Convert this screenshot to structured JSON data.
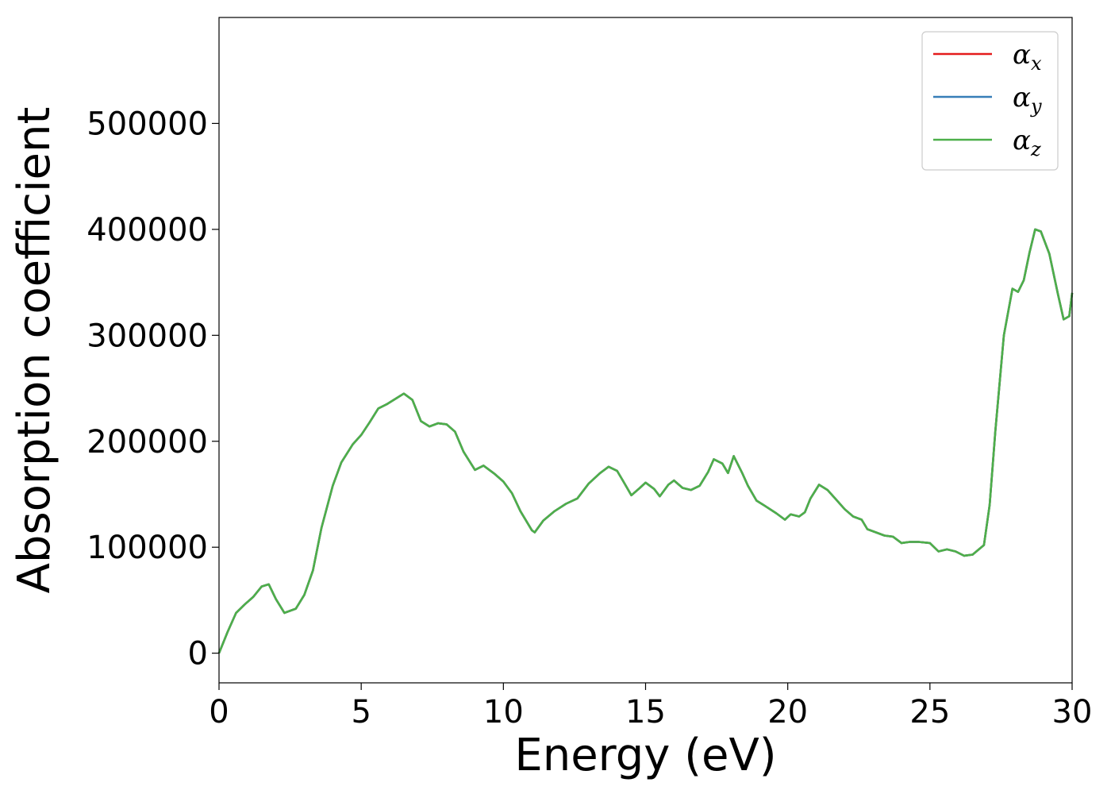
{
  "chart_data": {
    "type": "line",
    "title": "",
    "xlabel": "Energy (eV)",
    "ylabel": "Absorption coefficient",
    "xlim": [
      0,
      30
    ],
    "ylim": [
      -28000,
      600000
    ],
    "xticks": [
      0,
      5,
      10,
      15,
      20,
      25,
      30
    ],
    "yticks": [
      0,
      100000,
      200000,
      300000,
      400000,
      500000
    ],
    "grid": false,
    "legend_position": "top-right",
    "series": [
      {
        "name": "α",
        "sub": "x",
        "color": "#e41a1c",
        "x": [
          0,
          0.3,
          0.6,
          0.9,
          1.2,
          1.5,
          1.75,
          2.0,
          2.3,
          2.7,
          3.0,
          3.3,
          3.6,
          4.0,
          4.3,
          4.7,
          5.0,
          5.3,
          5.6,
          5.9,
          6.2,
          6.5,
          6.8,
          7.1,
          7.4,
          7.7,
          8.0,
          8.3,
          8.6,
          9.0,
          9.3,
          9.7,
          10.0,
          10.3,
          10.6,
          11.0,
          11.1,
          11.4,
          11.8,
          12.2,
          12.6,
          13.0,
          13.4,
          13.7,
          14.0,
          14.2,
          14.5,
          14.8,
          15.0,
          15.3,
          15.5,
          15.8,
          16.0,
          16.3,
          16.6,
          16.9,
          17.2,
          17.4,
          17.7,
          17.9,
          18.1,
          18.4,
          18.6,
          18.9,
          19.2,
          19.6,
          19.9,
          20.1,
          20.4,
          20.6,
          20.8,
          21.1,
          21.4,
          21.7,
          22.0,
          22.3,
          22.6,
          22.8,
          23.1,
          23.4,
          23.7,
          24.0,
          24.3,
          24.6,
          25.0,
          25.3,
          25.6,
          25.9,
          26.2,
          26.5,
          26.9,
          27.1,
          27.3,
          27.6,
          27.9,
          28.1,
          28.3,
          28.5,
          28.7,
          28.9,
          29.2,
          29.5,
          29.7,
          29.9,
          30.0
        ],
        "y": [
          0,
          20000,
          38000,
          46000,
          53000,
          63000,
          65000,
          51000,
          38000,
          42000,
          55000,
          78000,
          118000,
          158000,
          180000,
          197000,
          206000,
          218000,
          231000,
          235000,
          240000,
          245000,
          239000,
          219000,
          214000,
          217000,
          216000,
          209000,
          190000,
          173000,
          177000,
          169000,
          162000,
          151000,
          134000,
          116000,
          114000,
          125000,
          134000,
          141000,
          146000,
          160000,
          170000,
          176000,
          172000,
          163000,
          149000,
          156000,
          161000,
          155000,
          148000,
          159000,
          163000,
          156000,
          154000,
          158000,
          171000,
          183000,
          179000,
          170000,
          186000,
          170000,
          158000,
          144000,
          139000,
          132000,
          126000,
          131000,
          129000,
          133000,
          146000,
          159000,
          154000,
          145000,
          136000,
          129000,
          126000,
          117000,
          114000,
          111000,
          110000,
          104000,
          105000,
          105000,
          104000,
          96000,
          98000,
          96000,
          92000,
          93000,
          102000,
          140000,
          210000,
          300000,
          344000,
          341000,
          352000,
          378000,
          400000,
          398000,
          377000,
          339000,
          315000,
          318000,
          340000
        ]
      },
      {
        "name": "α",
        "sub": "y",
        "color": "#377eb8",
        "x": [
          0,
          0.3,
          0.6,
          0.9,
          1.2,
          1.5,
          1.75,
          2.0,
          2.3,
          2.7,
          3.0,
          3.3,
          3.6,
          4.0,
          4.3,
          4.7,
          5.0,
          5.3,
          5.6,
          5.9,
          6.2,
          6.5,
          6.8,
          7.1,
          7.4,
          7.7,
          8.0,
          8.3,
          8.6,
          9.0,
          9.3,
          9.7,
          10.0,
          10.3,
          10.6,
          11.0,
          11.1,
          11.4,
          11.8,
          12.2,
          12.6,
          13.0,
          13.4,
          13.7,
          14.0,
          14.2,
          14.5,
          14.8,
          15.0,
          15.3,
          15.5,
          15.8,
          16.0,
          16.3,
          16.6,
          16.9,
          17.2,
          17.4,
          17.7,
          17.9,
          18.1,
          18.4,
          18.6,
          18.9,
          19.2,
          19.6,
          19.9,
          20.1,
          20.4,
          20.6,
          20.8,
          21.1,
          21.4,
          21.7,
          22.0,
          22.3,
          22.6,
          22.8,
          23.1,
          23.4,
          23.7,
          24.0,
          24.3,
          24.6,
          25.0,
          25.3,
          25.6,
          25.9,
          26.2,
          26.5,
          26.9,
          27.1,
          27.3,
          27.6,
          27.9,
          28.1,
          28.3,
          28.5,
          28.7,
          28.9,
          29.2,
          29.5,
          29.7,
          29.9,
          30.0
        ],
        "y": [
          0,
          20000,
          38000,
          46000,
          53000,
          63000,
          65000,
          51000,
          38000,
          42000,
          55000,
          78000,
          118000,
          158000,
          180000,
          197000,
          206000,
          218000,
          231000,
          235000,
          240000,
          245000,
          239000,
          219000,
          214000,
          217000,
          216000,
          209000,
          190000,
          173000,
          177000,
          169000,
          162000,
          151000,
          134000,
          116000,
          114000,
          125000,
          134000,
          141000,
          146000,
          160000,
          170000,
          176000,
          172000,
          163000,
          149000,
          156000,
          161000,
          155000,
          148000,
          159000,
          163000,
          156000,
          154000,
          158000,
          171000,
          183000,
          179000,
          170000,
          186000,
          170000,
          158000,
          144000,
          139000,
          132000,
          126000,
          131000,
          129000,
          133000,
          146000,
          159000,
          154000,
          145000,
          136000,
          129000,
          126000,
          117000,
          114000,
          111000,
          110000,
          104000,
          105000,
          105000,
          104000,
          96000,
          98000,
          96000,
          92000,
          93000,
          102000,
          140000,
          210000,
          300000,
          344000,
          341000,
          352000,
          378000,
          400000,
          398000,
          377000,
          339000,
          315000,
          318000,
          340000
        ]
      },
      {
        "name": "α",
        "sub": "z",
        "color": "#4daf4a",
        "x": [
          0,
          0.3,
          0.6,
          0.9,
          1.2,
          1.5,
          1.75,
          2.0,
          2.3,
          2.7,
          3.0,
          3.3,
          3.6,
          4.0,
          4.3,
          4.7,
          5.0,
          5.3,
          5.6,
          5.9,
          6.2,
          6.5,
          6.8,
          7.1,
          7.4,
          7.7,
          8.0,
          8.3,
          8.6,
          9.0,
          9.3,
          9.7,
          10.0,
          10.3,
          10.6,
          11.0,
          11.1,
          11.4,
          11.8,
          12.2,
          12.6,
          13.0,
          13.4,
          13.7,
          14.0,
          14.2,
          14.5,
          14.8,
          15.0,
          15.3,
          15.5,
          15.8,
          16.0,
          16.3,
          16.6,
          16.9,
          17.2,
          17.4,
          17.7,
          17.9,
          18.1,
          18.4,
          18.6,
          18.9,
          19.2,
          19.6,
          19.9,
          20.1,
          20.4,
          20.6,
          20.8,
          21.1,
          21.4,
          21.7,
          22.0,
          22.3,
          22.6,
          22.8,
          23.1,
          23.4,
          23.7,
          24.0,
          24.3,
          24.6,
          25.0,
          25.3,
          25.6,
          25.9,
          26.2,
          26.5,
          26.9,
          27.1,
          27.3,
          27.6,
          27.9,
          28.1,
          28.3,
          28.5,
          28.7,
          28.9,
          29.2,
          29.5,
          29.7,
          29.9,
          30.0
        ],
        "y": [
          0,
          20000,
          38000,
          46000,
          53000,
          63000,
          65000,
          51000,
          38000,
          42000,
          55000,
          78000,
          118000,
          158000,
          180000,
          197000,
          206000,
          218000,
          231000,
          235000,
          240000,
          245000,
          239000,
          219000,
          214000,
          217000,
          216000,
          209000,
          190000,
          173000,
          177000,
          169000,
          162000,
          151000,
          134000,
          116000,
          114000,
          125000,
          134000,
          141000,
          146000,
          160000,
          170000,
          176000,
          172000,
          163000,
          149000,
          156000,
          161000,
          155000,
          148000,
          159000,
          163000,
          156000,
          154000,
          158000,
          171000,
          183000,
          179000,
          170000,
          186000,
          170000,
          158000,
          144000,
          139000,
          132000,
          126000,
          131000,
          129000,
          133000,
          146000,
          159000,
          154000,
          145000,
          136000,
          129000,
          126000,
          117000,
          114000,
          111000,
          110000,
          104000,
          105000,
          105000,
          104000,
          96000,
          98000,
          96000,
          92000,
          93000,
          102000,
          140000,
          210000,
          300000,
          344000,
          341000,
          352000,
          378000,
          400000,
          398000,
          377000,
          339000,
          315000,
          318000,
          340000
        ]
      }
    ]
  }
}
